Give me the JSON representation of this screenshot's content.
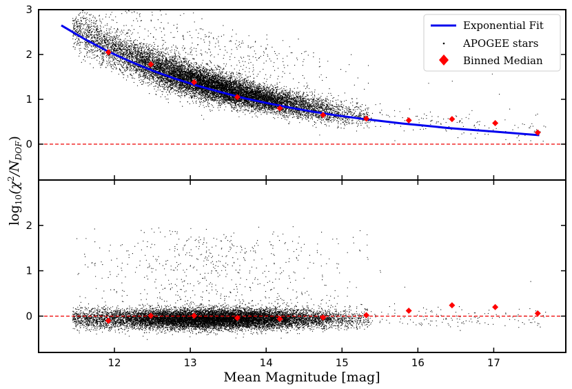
{
  "chart_data": [
    {
      "type": "scatter",
      "panel": "top",
      "ylim": [
        -0.8,
        3.0
      ],
      "xlim": [
        11.0,
        17.95
      ],
      "yticks": [
        0,
        1,
        2,
        3
      ],
      "ytick_labels": [
        "0",
        "1",
        "2",
        "3"
      ],
      "reference_line_y": 0,
      "series": [
        {
          "name": "Exponential Fit",
          "kind": "line",
          "color": "#0000ee",
          "x": [
            11.3,
            11.6,
            11.9,
            12.2,
            12.5,
            12.8,
            13.1,
            13.4,
            13.7,
            14.0,
            14.3,
            14.6,
            14.9,
            15.2,
            15.5,
            15.8,
            16.1,
            16.4,
            16.7,
            17.0,
            17.3,
            17.6
          ],
          "y": [
            2.65,
            2.35,
            2.08,
            1.85,
            1.64,
            1.46,
            1.3,
            1.16,
            1.03,
            0.92,
            0.82,
            0.73,
            0.65,
            0.58,
            0.52,
            0.46,
            0.41,
            0.36,
            0.32,
            0.28,
            0.24,
            0.2
          ]
        },
        {
          "name": "APOGEE stars",
          "kind": "points",
          "color": "#000000"
        },
        {
          "name": "Binned Median",
          "kind": "markers",
          "color": "#ff0000",
          "x": [
            11.92,
            12.48,
            13.05,
            13.62,
            14.18,
            14.75,
            15.32,
            15.88,
            16.45,
            17.02,
            17.58
          ],
          "y": [
            2.05,
            1.78,
            1.38,
            1.05,
            0.8,
            0.65,
            0.57,
            0.53,
            0.56,
            0.47,
            0.26
          ]
        }
      ]
    },
    {
      "type": "scatter",
      "panel": "bottom",
      "ylim": [
        -0.8,
        3.0
      ],
      "xlim": [
        11.0,
        17.95
      ],
      "yticks": [
        0,
        1,
        2
      ],
      "ytick_labels": [
        "0",
        "1",
        "2"
      ],
      "reference_line_y": 0,
      "series": [
        {
          "name": "APOGEE stars",
          "kind": "points",
          "color": "#000000"
        },
        {
          "name": "Binned Median",
          "kind": "markers",
          "color": "#ff0000",
          "x": [
            11.92,
            12.48,
            13.05,
            13.62,
            14.18,
            14.75,
            15.32,
            15.88,
            16.45,
            17.02,
            17.58
          ],
          "y": [
            -0.1,
            0.01,
            0.01,
            -0.04,
            -0.06,
            -0.03,
            0.02,
            0.12,
            0.24,
            0.2,
            0.06
          ]
        }
      ]
    }
  ],
  "xaxis": {
    "label": "Mean Magnitude [mag]",
    "ticks": [
      12,
      13,
      14,
      15,
      16,
      17
    ],
    "tick_labels": [
      "12",
      "13",
      "14",
      "15",
      "16",
      "17"
    ]
  },
  "yaxis": {
    "label_prefix": "log",
    "label_sub": "10",
    "label_body": "(χ",
    "label_sup": "2",
    "label_div": "/N",
    "label_sub2": "DOF",
    "label_close": ")"
  },
  "legend": {
    "placement": "top-right",
    "entries": [
      "Exponential Fit",
      "APOGEE stars",
      "Binned Median"
    ]
  },
  "colors": {
    "fit": "#0000ee",
    "median": "#ff0000",
    "stars": "#000000",
    "refline": "#ee0000"
  }
}
